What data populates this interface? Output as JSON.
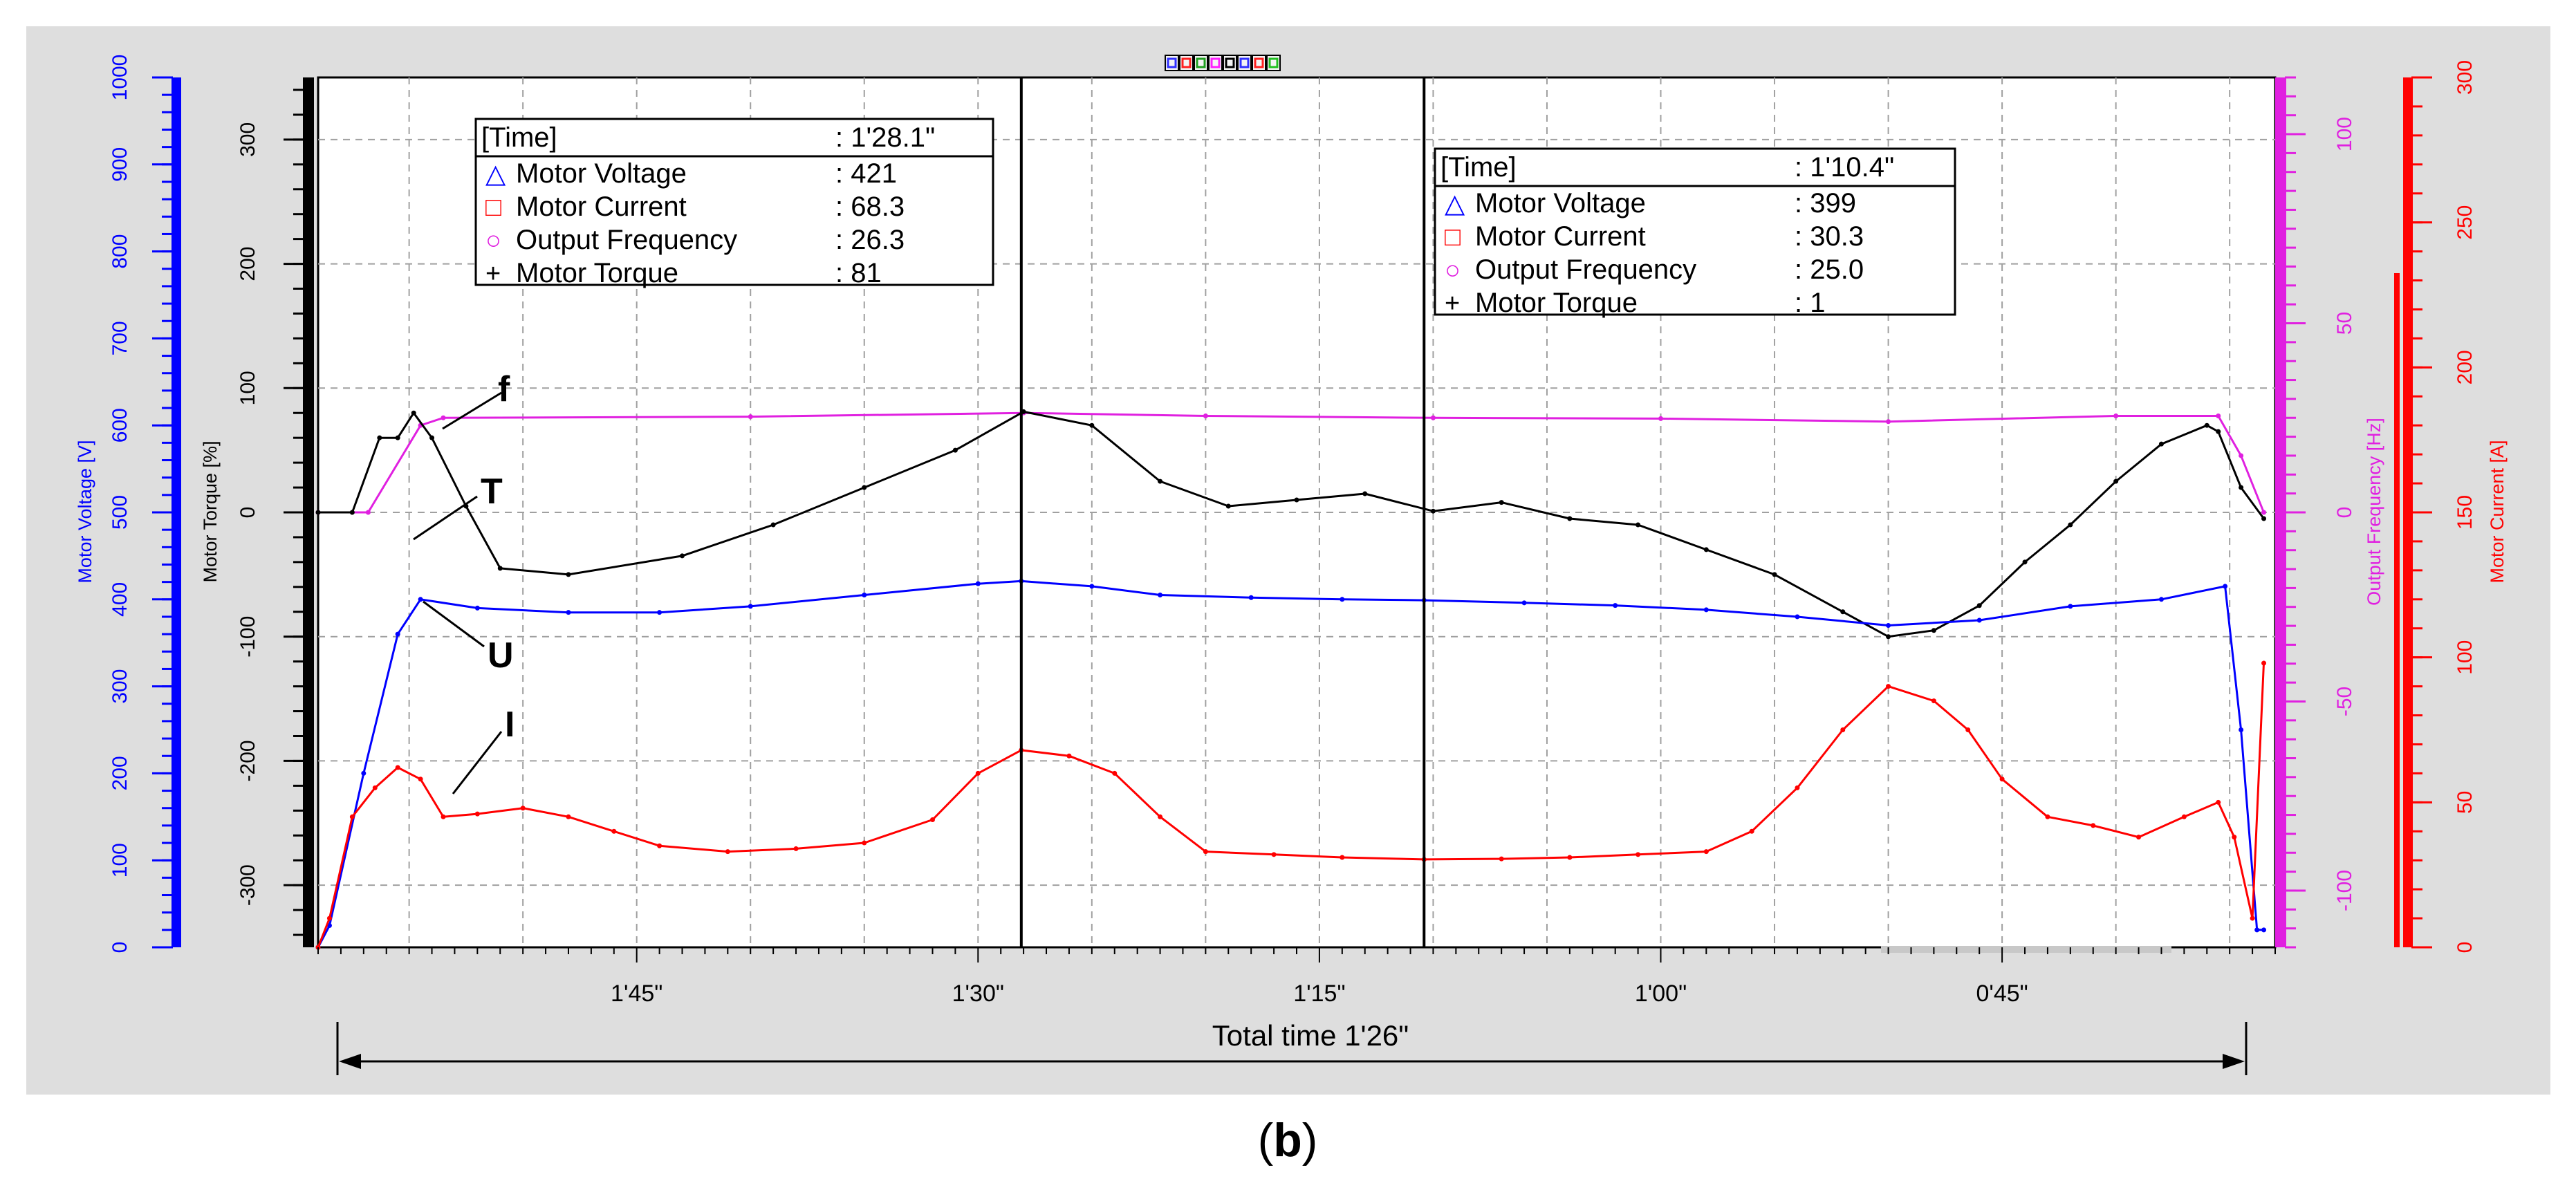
{
  "toolbar": {
    "icons": [
      "triangle-marker-icon",
      "square-marker-icon",
      "diamond-marker-icon",
      "pink-square-marker-icon",
      "grid-toggle-icon",
      "cross-marker-icon",
      "star-marker-icon",
      "green-square-marker-icon"
    ],
    "colors": [
      "#3030ff",
      "#ff2020",
      "#20a020",
      "#ff20ff",
      "#000000",
      "#3030ff",
      "#ff2020",
      "#20c020"
    ]
  },
  "axes": {
    "motor_voltage": {
      "label": "Motor Voltage [V]",
      "color": "#0000ff",
      "ticks": [
        "0",
        "100",
        "200",
        "300",
        "400",
        "500",
        "600",
        "700",
        "800",
        "900",
        "1000"
      ],
      "range": [
        0,
        1000
      ]
    },
    "motor_torque": {
      "label": "Motor Torque [%]",
      "color": "#000000",
      "ticks": [
        "-300",
        "-200",
        "-100",
        "0",
        "100",
        "200",
        "300"
      ],
      "range": [
        -350,
        350
      ]
    },
    "output_frequency": {
      "label": "Output Frequency [Hz]",
      "color": "#e020e0",
      "ticks": [
        "-100",
        "-50",
        "0",
        "50",
        "100"
      ],
      "range": [
        -115,
        115
      ]
    },
    "motor_current": {
      "label": "Motor Current [A]",
      "color": "#ff0000",
      "ticks": [
        "0",
        "50",
        "100",
        "150",
        "200",
        "250",
        "300"
      ],
      "range": [
        0,
        300
      ]
    }
  },
  "x_axis": {
    "ticks": [
      "1'45\"",
      "1'30\"",
      "1'15\"",
      "1'00\"",
      "0'45\""
    ],
    "tick_positions_s": [
      105,
      90,
      75,
      60,
      45
    ],
    "range_s": [
      119,
      33
    ],
    "total_label": "Total time 1'26\""
  },
  "cursors": [
    {
      "time_s": 88.1,
      "box": {
        "time_label": "[Time]",
        "time_value": ": 1'28.1\"",
        "rows": [
          {
            "symbol": "△",
            "symbol_color": "#0000ff",
            "name": "Motor Voltage",
            "value": ": 421"
          },
          {
            "symbol": "□",
            "symbol_color": "#ff0000",
            "name": "Motor Current",
            "value": ": 68.3"
          },
          {
            "symbol": "○",
            "symbol_color": "#e020e0",
            "name": "Output Frequency",
            "value": ": 26.3"
          },
          {
            "symbol": "+",
            "symbol_color": "#000000",
            "name": "Motor Torque",
            "value": ": 81"
          }
        ]
      }
    },
    {
      "time_s": 70.4,
      "box": {
        "time_label": "[Time]",
        "time_value": ": 1'10.4\"",
        "rows": [
          {
            "symbol": "△",
            "symbol_color": "#0000ff",
            "name": "Motor Voltage",
            "value": ": 399"
          },
          {
            "symbol": "□",
            "symbol_color": "#ff0000",
            "name": "Motor Current",
            "value": ": 30.3"
          },
          {
            "symbol": "○",
            "symbol_color": "#e020e0",
            "name": "Output Frequency",
            "value": ": 25.0"
          },
          {
            "symbol": "+",
            "symbol_color": "#000000",
            "name": "Motor Torque",
            "value": ": 1"
          }
        ]
      }
    }
  ],
  "annotations": {
    "f": "f",
    "T": "T",
    "U": "U",
    "I": "I"
  },
  "caption": {
    "open": "(",
    "letter": "b",
    "close": ")"
  },
  "chart_data": {
    "type": "line",
    "title": "",
    "xlabel": "Total time 1'26\"",
    "x_direction": "descending",
    "series": [
      {
        "name": "Output Frequency",
        "unit": "Hz",
        "axis": "output_frequency",
        "color": "#e020e0",
        "x": [
          119,
          116.8,
          114.5,
          113.5,
          100,
          88,
          80,
          70,
          60,
          50,
          40,
          35.5,
          34.5,
          33.5
        ],
        "y": [
          0,
          0,
          23,
          25,
          25.3,
          26.3,
          25.5,
          25,
          24.8,
          24,
          25.5,
          25.5,
          15,
          0
        ]
      },
      {
        "name": "Motor Torque",
        "unit": "%",
        "axis": "motor_torque",
        "color": "#000000",
        "x": [
          119,
          117.5,
          116.3,
          115.5,
          114.8,
          114,
          112.5,
          111,
          108,
          103,
          99,
          95,
          91,
          88,
          85,
          82,
          79,
          76,
          73,
          70,
          67,
          64,
          61,
          58,
          55,
          52,
          50,
          48,
          46,
          44,
          42,
          40,
          38,
          36,
          35.5,
          34.5,
          33.5
        ],
        "y": [
          0,
          0,
          60,
          60,
          80,
          60,
          5,
          -45,
          -50,
          -35,
          -10,
          20,
          50,
          81,
          70,
          25,
          5,
          10,
          15,
          1,
          8,
          -5,
          -10,
          -30,
          -50,
          -80,
          -100,
          -95,
          -75,
          -40,
          -10,
          25,
          55,
          70,
          65,
          20,
          -5
        ]
      },
      {
        "name": "Motor Voltage",
        "unit": "V",
        "axis": "motor_voltage",
        "color": "#0000ff",
        "x": [
          119,
          118.5,
          117,
          115.5,
          114.5,
          112,
          108,
          104,
          100,
          95,
          90,
          88.1,
          85,
          82,
          78,
          74,
          70.4,
          66,
          62,
          58,
          54,
          50,
          46,
          42,
          38,
          35.2,
          34.5,
          33.8,
          33.5
        ],
        "y": [
          0,
          25,
          200,
          360,
          400,
          390,
          385,
          385,
          392,
          405,
          418,
          421,
          415,
          405,
          402,
          400,
          399,
          396,
          393,
          388,
          380,
          370,
          376,
          392,
          400,
          415,
          250,
          20,
          20
        ]
      },
      {
        "name": "Motor Current",
        "unit": "A",
        "axis": "motor_current",
        "color": "#ff0000",
        "x": [
          119,
          118.5,
          117.5,
          116.5,
          115.5,
          114.5,
          113.5,
          112,
          110,
          108,
          106,
          104,
          101,
          98,
          95,
          92,
          90,
          88.1,
          86,
          84,
          82,
          80,
          77,
          74,
          70.4,
          67,
          64,
          61,
          58,
          56,
          54,
          52,
          50,
          48,
          46.5,
          45,
          43,
          41,
          39,
          37,
          35.5,
          34.8,
          34,
          33.5
        ],
        "y": [
          0,
          10,
          45,
          55,
          62,
          58,
          45,
          46,
          48,
          45,
          40,
          35,
          33,
          34,
          36,
          44,
          60,
          68,
          66,
          60,
          45,
          33,
          32,
          31,
          30.3,
          30.5,
          31,
          32,
          33,
          40,
          55,
          75,
          90,
          85,
          75,
          58,
          45,
          42,
          38,
          45,
          50,
          38,
          10,
          98
        ]
      }
    ]
  }
}
